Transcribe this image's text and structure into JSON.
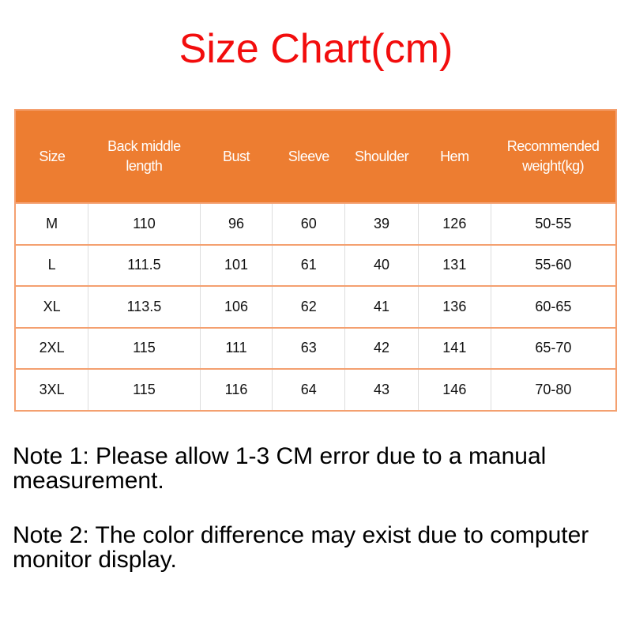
{
  "title": "Size Chart(cm)",
  "table": {
    "headers": [
      "Size",
      "Back middle length",
      "Bust",
      "Sleeve",
      "Shoulder",
      "Hem",
      "Recommended weight(kg)"
    ],
    "rows": [
      [
        "M",
        "110",
        "96",
        "60",
        "39",
        "126",
        "50-55"
      ],
      [
        "L",
        "111.5",
        "101",
        "61",
        "40",
        "131",
        "55-60"
      ],
      [
        "XL",
        "113.5",
        "106",
        "62",
        "41",
        "136",
        "60-65"
      ],
      [
        "2XL",
        "115",
        "111",
        "63",
        "42",
        "141",
        "65-70"
      ],
      [
        "3XL",
        "115",
        "116",
        "64",
        "43",
        "146",
        "70-80"
      ]
    ]
  },
  "notes": [
    "Note 1: Please allow 1-3 CM error due to a manual measurement.",
    "Note 2: The color difference may exist due to computer monitor display."
  ],
  "colors": {
    "title": "#f20d0d",
    "header_bg": "#ed7d31"
  }
}
